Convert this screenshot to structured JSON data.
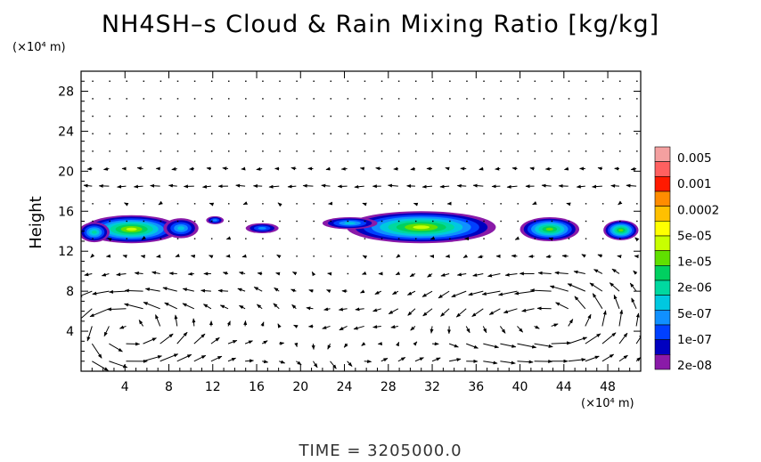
{
  "chart_data": {
    "type": "heatmap",
    "title": "NH4SH–s Cloud & Rain Mixing Ratio [kg/kg]",
    "ylabel": "Height",
    "y_unit": "(×10⁴ m)",
    "x_unit": "(×10⁴ m)",
    "footer": "TIME  =  3205000.0",
    "xlim": [
      0,
      51
    ],
    "ylim": [
      0,
      30
    ],
    "xticks": [
      "4",
      "8",
      "12",
      "16",
      "20",
      "24",
      "28",
      "32",
      "36",
      "40",
      "44",
      "48"
    ],
    "yticks": [
      "4",
      "8",
      "12",
      "16",
      "20",
      "24",
      "28"
    ],
    "xtick_values": [
      4,
      8,
      12,
      16,
      20,
      24,
      28,
      32,
      36,
      40,
      44,
      48
    ],
    "ytick_values": [
      4,
      8,
      12,
      16,
      20,
      24,
      28
    ],
    "colorbar": {
      "labels": [
        "0.005",
        "0.001",
        "0.0002",
        "5e-05",
        "1e-05",
        "2e-06",
        "5e-07",
        "1e-07",
        "2e-08"
      ],
      "colors": [
        "#f4a0a0",
        "#ff6060",
        "#ff1a00",
        "#ff8c00",
        "#ffc000",
        "#ffff00",
        "#c8ff00",
        "#60e000",
        "#00d060",
        "#00d8a0",
        "#00c8e0",
        "#1090ff",
        "#0040ff",
        "#0000c0",
        "#8a1aa8"
      ]
    },
    "cloud_blobs": [
      {
        "x": 4.6,
        "y": 14.2,
        "rx": 4.4,
        "ry": 1.4,
        "level": 6
      },
      {
        "x": 1.2,
        "y": 13.9,
        "rx": 1.4,
        "ry": 1.0,
        "level": 3
      },
      {
        "x": 9.1,
        "y": 14.3,
        "rx": 1.6,
        "ry": 1.0,
        "level": 2
      },
      {
        "x": 12.2,
        "y": 15.1,
        "rx": 0.8,
        "ry": 0.4,
        "level": 1
      },
      {
        "x": 16.5,
        "y": 14.3,
        "rx": 1.5,
        "ry": 0.5,
        "level": 1
      },
      {
        "x": 31.0,
        "y": 14.4,
        "rx": 6.8,
        "ry": 1.6,
        "level": 6
      },
      {
        "x": 24.5,
        "y": 14.8,
        "rx": 2.5,
        "ry": 0.6,
        "level": 2
      },
      {
        "x": 42.7,
        "y": 14.2,
        "rx": 2.7,
        "ry": 1.2,
        "level": 5
      },
      {
        "x": 49.2,
        "y": 14.1,
        "rx": 1.6,
        "ry": 1.0,
        "level": 5
      }
    ],
    "wind_field": {
      "circulations": [
        {
          "x": 4,
          "y": 4,
          "strength": 1.6
        },
        {
          "x": 26,
          "y": 2,
          "strength": 0.8
        },
        {
          "x": 44,
          "y": 5,
          "strength": 1.4
        },
        {
          "x": 36,
          "y": 5,
          "strength": 0.9
        },
        {
          "x": 14,
          "y": 5,
          "strength": 0.6
        }
      ],
      "jet_level": 19,
      "jet_direction": "west"
    }
  }
}
